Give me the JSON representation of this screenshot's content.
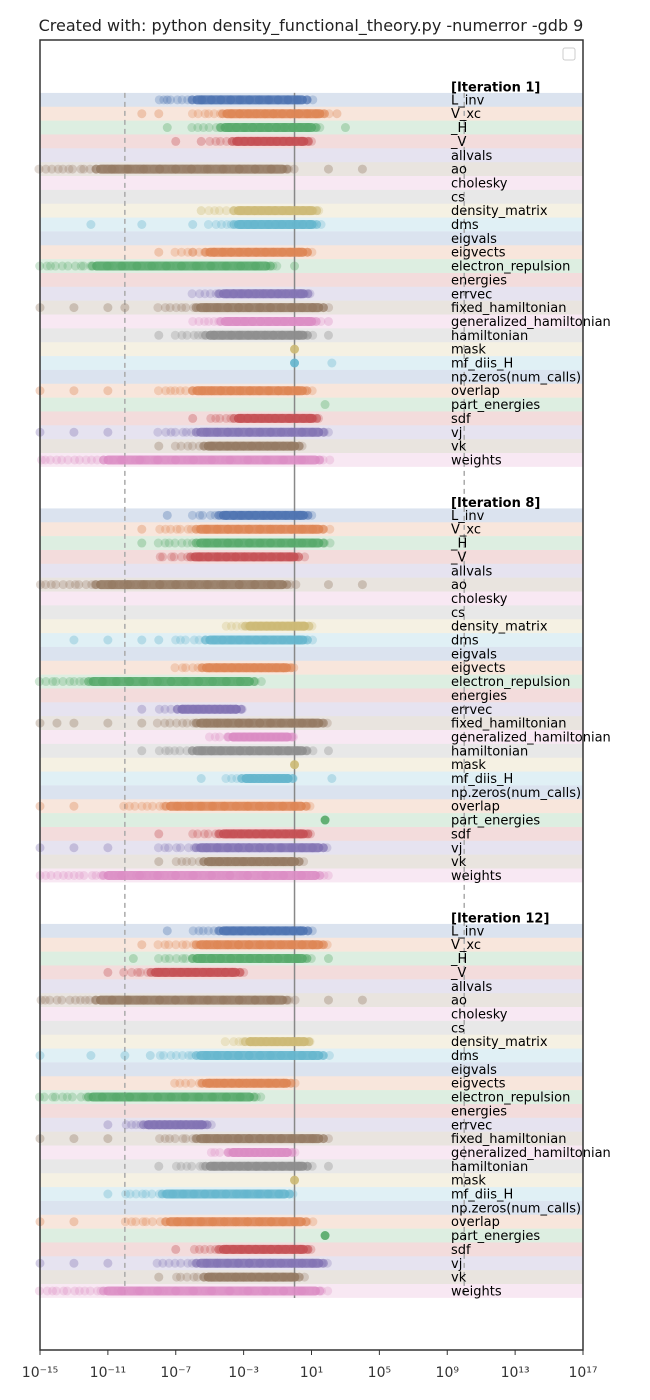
{
  "chart_data": {
    "type": "scatter",
    "title": "Created with:  python density_functional_theory.py -numerror -gdb 9",
    "xlabel": "",
    "ylabel": "",
    "x_scale": "log",
    "xlim": [
      "1e-15",
      "1e17"
    ],
    "x_ticks": [
      {
        "exp": -15,
        "label": "10⁻¹⁵"
      },
      {
        "exp": -11,
        "label": "10⁻¹¹"
      },
      {
        "exp": -7,
        "label": "10⁻⁷"
      },
      {
        "exp": -3,
        "label": "10⁻³"
      },
      {
        "exp": 1,
        "label": "10¹"
      },
      {
        "exp": 5,
        "label": "10⁵"
      },
      {
        "exp": 9,
        "label": "10⁹"
      },
      {
        "exp": 13,
        "label": "10¹³"
      },
      {
        "exp": 17,
        "label": "10¹⁷"
      }
    ],
    "reference_lines": [
      {
        "value": "1e-10",
        "style": "dashed"
      },
      {
        "value": "1",
        "style": "solid"
      },
      {
        "value": "1e10",
        "style": "dashed"
      }
    ],
    "legend": "top-right (empty)",
    "grid": false,
    "colors": {
      "L_inv": "#4c72b0",
      "V_xc": "#dd8452",
      "_H": "#55a868",
      "_V": "#c44e52",
      "allvals": "#8172b3",
      "ao": "#937860",
      "cholesky": "#da8bc3",
      "cs": "#8c8c8c",
      "density_matrix": "#ccb974",
      "dms": "#64b5cd"
    },
    "series_order": [
      "L_inv",
      "V_xc",
      "_H",
      "_V",
      "allvals",
      "ao",
      "cholesky",
      "cs",
      "density_matrix",
      "dms",
      "eigvals",
      "eigvects",
      "electron_repulsion",
      "energies",
      "errvec",
      "fixed_hamiltonian",
      "generalized_hamiltonian",
      "hamiltonian",
      "mask",
      "mf_diis_H",
      "np.zeros(num_calls)",
      "overlap",
      "part_energies",
      "sdf",
      "vj",
      "vk",
      "weights"
    ],
    "groups": [
      {
        "label": "[Iteration 1]",
        "series": [
          {
            "name": "L_inv",
            "range_log10": [
              -8,
              1
            ],
            "outliers_log10": [
              -7.5,
              -5.5
            ]
          },
          {
            "name": "V_xc",
            "range_log10": [
              -6,
              2
            ],
            "outliers_log10": [
              -9,
              -8,
              2.5
            ]
          },
          {
            "name": "_H",
            "range_log10": [
              -6,
              1.5
            ],
            "outliers_log10": [
              -7.5,
              3
            ]
          },
          {
            "name": "_V",
            "range_log10": [
              -5,
              1
            ],
            "outliers_log10": [
              -7,
              -5.5
            ]
          },
          {
            "name": "allvals",
            "range_log10": null,
            "outliers_log10": []
          },
          {
            "name": "ao",
            "range_log10": [
              -15,
              0
            ],
            "outliers_log10": [
              2,
              4
            ]
          },
          {
            "name": "cholesky",
            "range_log10": null,
            "outliers_log10": []
          },
          {
            "name": "cs",
            "range_log10": null,
            "outliers_log10": []
          },
          {
            "name": "density_matrix",
            "range_log10": [
              -5,
              1.5
            ],
            "outliers_log10": [
              -5.5
            ]
          },
          {
            "name": "dms",
            "range_log10": [
              -5,
              1.5
            ],
            "outliers_log10": [
              -12,
              -9,
              -6
            ]
          },
          {
            "name": "eigvals",
            "range_log10": null,
            "outliers_log10": []
          },
          {
            "name": "eigvects",
            "range_log10": [
              -7,
              1
            ],
            "outliers_log10": [
              -8,
              -6
            ]
          },
          {
            "name": "electron_repulsion",
            "range_log10": [
              -15,
              -1
            ],
            "outliers_log10": [
              0
            ]
          },
          {
            "name": "energies",
            "range_log10": null,
            "outliers_log10": []
          },
          {
            "name": "errvec",
            "range_log10": [
              -6,
              1
            ],
            "outliers_log10": []
          },
          {
            "name": "fixed_hamiltonian",
            "range_log10": [
              -8,
              2
            ],
            "outliers_log10": [
              -15,
              -13,
              -11,
              -10
            ]
          },
          {
            "name": "generalized_hamiltonian",
            "range_log10": [
              -6,
              1.5
            ],
            "outliers_log10": [
              2
            ]
          },
          {
            "name": "hamiltonian",
            "range_log10": [
              -7,
              1
            ],
            "outliers_log10": [
              -8,
              2
            ]
          },
          {
            "name": "mask",
            "range_log10": [
              0,
              0
            ],
            "outliers_log10": []
          },
          {
            "name": "mf_diis_H",
            "range_log10": [
              0,
              0
            ],
            "outliers_log10": [
              2.2
            ]
          },
          {
            "name": "np.zeros(num_calls)",
            "range_log10": null,
            "outliers_log10": []
          },
          {
            "name": "overlap",
            "range_log10": [
              -8,
              1
            ],
            "outliers_log10": [
              -15,
              -13,
              -11
            ]
          },
          {
            "name": "part_energies",
            "range_log10": null,
            "outliers_log10": [
              1.8
            ]
          },
          {
            "name": "sdf",
            "range_log10": [
              -5,
              1.5
            ],
            "outliers_log10": [
              -6
            ]
          },
          {
            "name": "vj",
            "range_log10": [
              -8,
              2
            ],
            "outliers_log10": [
              -15,
              -13,
              -11
            ]
          },
          {
            "name": "vk",
            "range_log10": [
              -7,
              0.5
            ],
            "outliers_log10": [
              -8
            ]
          },
          {
            "name": "weights",
            "range_log10": [
              -15,
              2
            ],
            "outliers_log10": []
          }
        ]
      },
      {
        "label": "[Iteration 8]",
        "series": [
          {
            "name": "L_inv",
            "range_log10": [
              -6,
              1
            ],
            "outliers_log10": [
              -7.5
            ]
          },
          {
            "name": "V_xc",
            "range_log10": [
              -8,
              2
            ],
            "outliers_log10": [
              -9
            ]
          },
          {
            "name": "_H",
            "range_log10": [
              -8,
              2
            ],
            "outliers_log10": [
              -9
            ]
          },
          {
            "name": "_V",
            "range_log10": [
              -8,
              0.5
            ],
            "outliers_log10": []
          },
          {
            "name": "allvals",
            "range_log10": null,
            "outliers_log10": []
          },
          {
            "name": "ao",
            "range_log10": [
              -15,
              0
            ],
            "outliers_log10": [
              2,
              4
            ]
          },
          {
            "name": "cholesky",
            "range_log10": null,
            "outliers_log10": []
          },
          {
            "name": "cs",
            "range_log10": null,
            "outliers_log10": []
          },
          {
            "name": "density_matrix",
            "range_log10": [
              -4,
              1
            ],
            "outliers_log10": []
          },
          {
            "name": "dms",
            "range_log10": [
              -7,
              1
            ],
            "outliers_log10": [
              -13,
              -11,
              -9,
              -8
            ]
          },
          {
            "name": "eigvals",
            "range_log10": null,
            "outliers_log10": []
          },
          {
            "name": "eigvects",
            "range_log10": [
              -7,
              0
            ],
            "outliers_log10": []
          },
          {
            "name": "electron_repulsion",
            "range_log10": [
              -15,
              -2
            ],
            "outliers_log10": []
          },
          {
            "name": "energies",
            "range_log10": null,
            "outliers_log10": []
          },
          {
            "name": "errvec",
            "range_log10": [
              -8,
              -3
            ],
            "outliers_log10": [
              -9
            ]
          },
          {
            "name": "fixed_hamiltonian",
            "range_log10": [
              -8,
              2
            ],
            "outliers_log10": [
              -15,
              -14,
              -13,
              -11,
              -9
            ]
          },
          {
            "name": "generalized_hamiltonian",
            "range_log10": [
              -5,
              0
            ],
            "outliers_log10": []
          },
          {
            "name": "hamiltonian",
            "range_log10": [
              -8,
              1
            ],
            "outliers_log10": [
              -9,
              2
            ]
          },
          {
            "name": "mask",
            "range_log10": [
              0,
              0
            ],
            "outliers_log10": []
          },
          {
            "name": "mf_diis_H",
            "range_log10": [
              -4,
              0
            ],
            "outliers_log10": [
              -5.5,
              2.2
            ]
          },
          {
            "name": "np.zeros(num_calls)",
            "range_log10": null,
            "outliers_log10": []
          },
          {
            "name": "overlap",
            "range_log10": [
              -10,
              1
            ],
            "outliers_log10": [
              -15,
              -13
            ]
          },
          {
            "name": "part_energies",
            "range_log10": null,
            "outliers_log10": [
              1.8
            ]
          },
          {
            "name": "sdf",
            "range_log10": [
              -6,
              1
            ],
            "outliers_log10": [
              -8
            ]
          },
          {
            "name": "vj",
            "range_log10": [
              -8,
              2
            ],
            "outliers_log10": [
              -15,
              -13,
              -11
            ]
          },
          {
            "name": "vk",
            "range_log10": [
              -7,
              0.5
            ],
            "outliers_log10": [
              -8
            ]
          },
          {
            "name": "weights",
            "range_log10": [
              -15,
              2
            ],
            "outliers_log10": []
          }
        ]
      },
      {
        "label": "[Iteration 12]",
        "series": [
          {
            "name": "L_inv",
            "range_log10": [
              -6,
              1
            ],
            "outliers_log10": [
              -7.5
            ]
          },
          {
            "name": "V_xc",
            "range_log10": [
              -8,
              2
            ],
            "outliers_log10": [
              -9
            ]
          },
          {
            "name": "_H",
            "range_log10": [
              -8,
              1
            ],
            "outliers_log10": [
              -9.5,
              2
            ]
          },
          {
            "name": "_V",
            "range_log10": [
              -10,
              -3
            ],
            "outliers_log10": [
              -11
            ]
          },
          {
            "name": "allvals",
            "range_log10": null,
            "outliers_log10": []
          },
          {
            "name": "ao",
            "range_log10": [
              -15,
              0
            ],
            "outliers_log10": [
              2,
              4
            ]
          },
          {
            "name": "cholesky",
            "range_log10": null,
            "outliers_log10": []
          },
          {
            "name": "cs",
            "range_log10": null,
            "outliers_log10": []
          },
          {
            "name": "density_matrix",
            "range_log10": [
              -4,
              1
            ],
            "outliers_log10": []
          },
          {
            "name": "dms",
            "range_log10": [
              -8,
              2
            ],
            "outliers_log10": [
              -15,
              -12,
              -10,
              -8.5
            ]
          },
          {
            "name": "eigvals",
            "range_log10": null,
            "outliers_log10": []
          },
          {
            "name": "eigvects",
            "range_log10": [
              -7,
              0
            ],
            "outliers_log10": []
          },
          {
            "name": "electron_repulsion",
            "range_log10": [
              -15,
              -2
            ],
            "outliers_log10": []
          },
          {
            "name": "energies",
            "range_log10": null,
            "outliers_log10": []
          },
          {
            "name": "errvec",
            "range_log10": [
              -10,
              -5
            ],
            "outliers_log10": [
              -11
            ]
          },
          {
            "name": "fixed_hamiltonian",
            "range_log10": [
              -8,
              2
            ],
            "outliers_log10": [
              -15,
              -13,
              -11
            ]
          },
          {
            "name": "generalized_hamiltonian",
            "range_log10": [
              -5,
              0
            ],
            "outliers_log10": []
          },
          {
            "name": "hamiltonian",
            "range_log10": [
              -7,
              1
            ],
            "outliers_log10": [
              -8,
              2
            ]
          },
          {
            "name": "mask",
            "range_log10": [
              0,
              0
            ],
            "outliers_log10": []
          },
          {
            "name": "mf_diis_H",
            "range_log10": [
              -10,
              0
            ],
            "outliers_log10": [
              -11,
              -3,
              -2
            ]
          },
          {
            "name": "np.zeros(num_calls)",
            "range_log10": null,
            "outliers_log10": []
          },
          {
            "name": "overlap",
            "range_log10": [
              -10,
              1
            ],
            "outliers_log10": [
              -15,
              -13
            ]
          },
          {
            "name": "part_energies",
            "range_log10": null,
            "outliers_log10": [
              1.8
            ]
          },
          {
            "name": "sdf",
            "range_log10": [
              -6,
              1
            ],
            "outliers_log10": [
              -7
            ]
          },
          {
            "name": "vj",
            "range_log10": [
              -8,
              2
            ],
            "outliers_log10": [
              -15,
              -13,
              -11
            ]
          },
          {
            "name": "vk",
            "range_log10": [
              -7,
              0.5
            ],
            "outliers_log10": [
              -8
            ]
          },
          {
            "name": "weights",
            "range_log10": [
              -15,
              2
            ],
            "outliers_log10": []
          }
        ]
      }
    ]
  }
}
